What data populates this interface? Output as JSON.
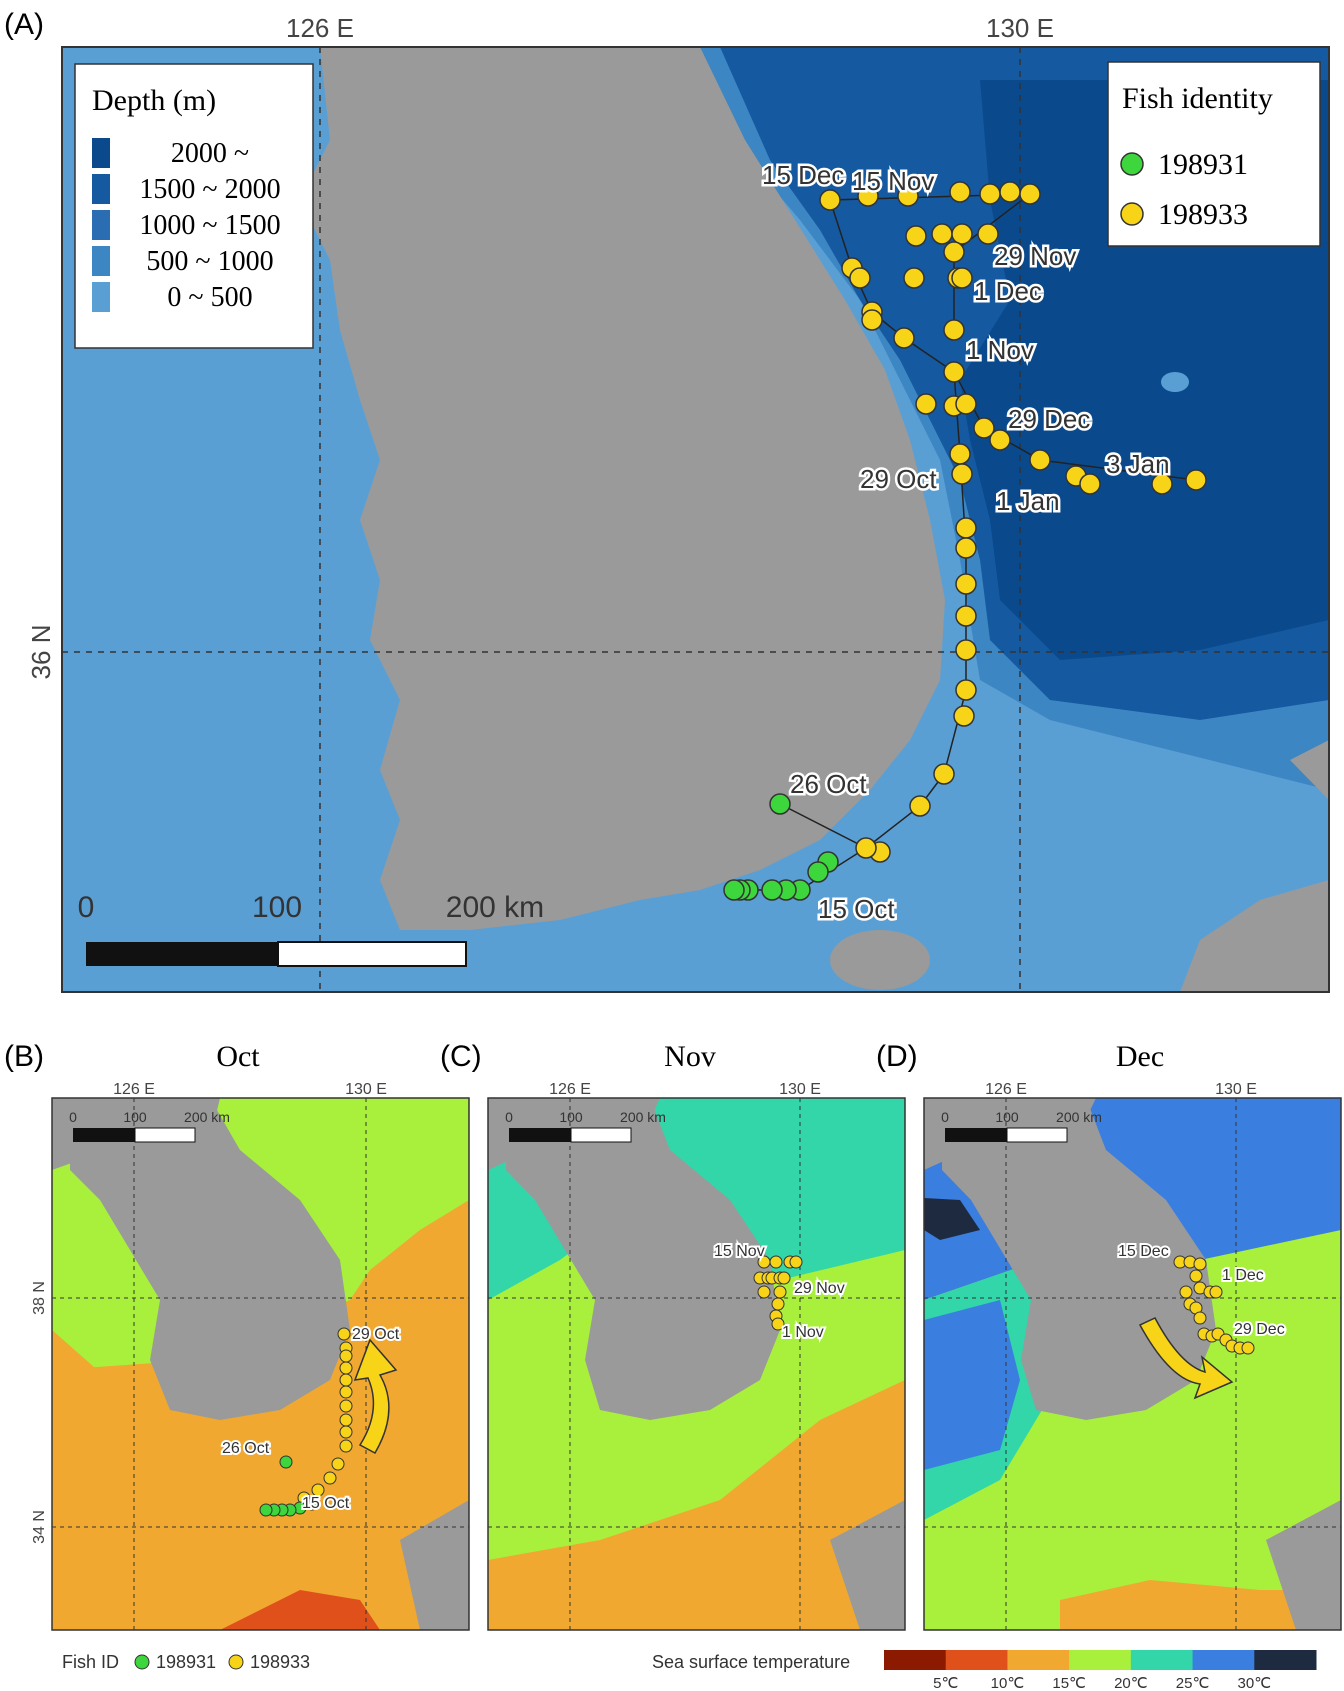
{
  "panel_a": {
    "letter": "(A)",
    "lon_labels": [
      "126 E",
      "130 E"
    ],
    "lat_label": "36 N",
    "depth_legend": {
      "title": "Depth (m)",
      "classes": [
        {
          "label": "2000 ~",
          "color": "#0a4a8c"
        },
        {
          "label": "1500 ~ 2000",
          "color": "#1559a0"
        },
        {
          "label": "1000 ~ 1500",
          "color": "#2a6db3"
        },
        {
          "label": "500 ~ 1000",
          "color": "#3d86c4"
        },
        {
          "label": "0 ~ 500",
          "color": "#5a9fd4"
        }
      ]
    },
    "fish_legend": {
      "title": "Fish identity",
      "items": [
        {
          "label": "198931",
          "color": "#3dd63d"
        },
        {
          "label": "198933",
          "color": "#f7d417"
        }
      ]
    },
    "scale_bar": {
      "labels": [
        "0",
        "100",
        "200 km"
      ]
    },
    "date_labels": [
      "15 Dec",
      "15 Nov",
      "29 Nov",
      "1 Dec",
      "1 Nov",
      "29 Dec",
      "3 Jan",
      "29 Oct",
      "1 Jan",
      "26 Oct",
      "15 Oct"
    ]
  },
  "panel_b": {
    "letter": "(B)",
    "title": "Oct",
    "lon_labels": [
      "126 E",
      "130 E"
    ],
    "lat_labels": [
      "38 N",
      "34 N"
    ],
    "scale_labels": [
      "0",
      "100",
      "200 km"
    ],
    "date_labels": [
      "29 Oct",
      "26 Oct",
      "15 Oct"
    ]
  },
  "panel_c": {
    "letter": "(C)",
    "title": "Nov",
    "lon_labels": [
      "126 E",
      "130 E"
    ],
    "scale_labels": [
      "0",
      "100",
      "200 km"
    ],
    "date_labels": [
      "15 Nov",
      "29 Nov",
      "1 Nov"
    ]
  },
  "panel_d": {
    "letter": "(D)",
    "title": "Dec",
    "lon_labels": [
      "126 E",
      "130 E"
    ],
    "scale_labels": [
      "0",
      "100",
      "200 km"
    ],
    "date_labels": [
      "15 Dec",
      "1 Dec",
      "29 Dec"
    ]
  },
  "bottom_legend": {
    "fish_label": "Fish ID",
    "fish_items": [
      {
        "label": "198931",
        "color": "#3dd63d"
      },
      {
        "label": "198933",
        "color": "#f7d417"
      }
    ],
    "sst_title": "Sea surface temperature",
    "sst_colors": [
      "#8b1a00",
      "#e0501a",
      "#f0a830",
      "#a8f03c",
      "#32d6a8",
      "#3a7ee0",
      "#1e2a40"
    ],
    "sst_ticks": [
      "5℃",
      "10℃",
      "15℃",
      "20℃",
      "25℃",
      "30℃"
    ]
  },
  "colors": {
    "land": "#9a9a9a",
    "sst_warm": "#f0a830",
    "sst_mid": "#a8f03c",
    "sst_cool": "#32d6a8",
    "sst_blue": "#3a7ee0"
  }
}
